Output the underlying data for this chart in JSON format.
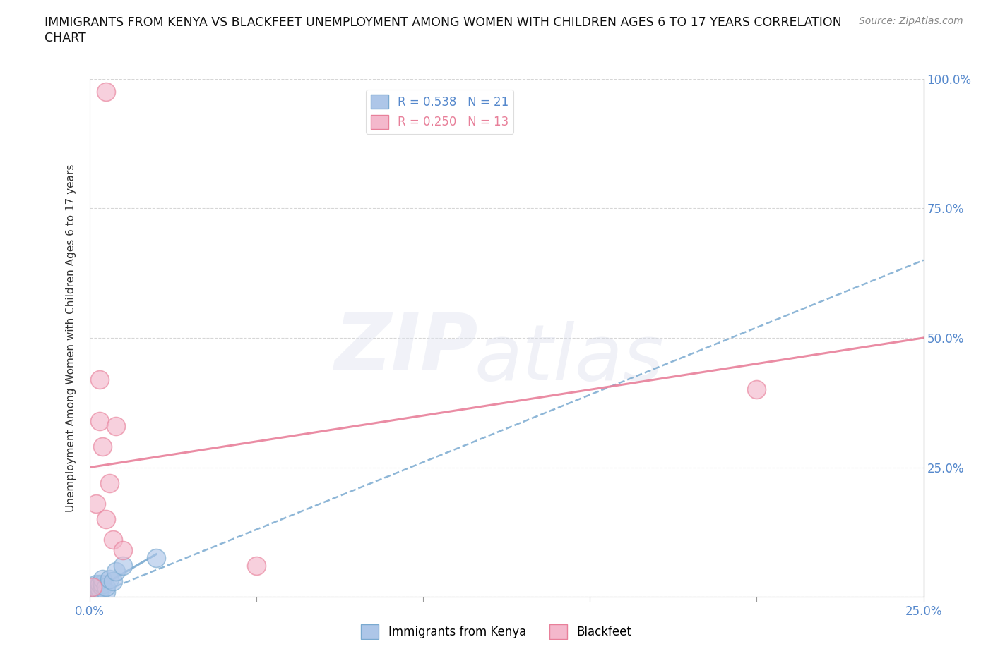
{
  "title": "IMMIGRANTS FROM KENYA VS BLACKFEET UNEMPLOYMENT AMONG WOMEN WITH CHILDREN AGES 6 TO 17 YEARS CORRELATION\nCHART",
  "source": "Source: ZipAtlas.com",
  "ylabel": "Unemployment Among Women with Children Ages 6 to 17 years",
  "xlim": [
    0,
    0.25
  ],
  "ylim": [
    0,
    1.0
  ],
  "xtick_labels": [
    "0.0%",
    "",
    "",
    "",
    "",
    "25.0%"
  ],
  "ytick_labels": [
    "",
    "25.0%",
    "50.0%",
    "75.0%",
    "100.0%"
  ],
  "blue_fill": "#adc6e8",
  "blue_edge": "#7aaad0",
  "pink_fill": "#f4b8cc",
  "pink_edge": "#e8809a",
  "blue_line_color": "#7aaad0",
  "pink_line_color": "#e8809a",
  "r_blue": 0.538,
  "n_blue": 21,
  "r_pink": 0.25,
  "n_pink": 13,
  "kenya_x": [
    0.001,
    0.001,
    0.001,
    0.001,
    0.002,
    0.002,
    0.002,
    0.002,
    0.003,
    0.003,
    0.003,
    0.004,
    0.004,
    0.004,
    0.005,
    0.005,
    0.006,
    0.007,
    0.008,
    0.01,
    0.02
  ],
  "kenya_y": [
    0.005,
    0.01,
    0.015,
    0.02,
    0.005,
    0.01,
    0.02,
    0.025,
    0.005,
    0.015,
    0.025,
    0.02,
    0.025,
    0.035,
    0.01,
    0.02,
    0.035,
    0.03,
    0.05,
    0.06,
    0.075
  ],
  "blackfeet_x": [
    0.001,
    0.002,
    0.003,
    0.003,
    0.004,
    0.005,
    0.006,
    0.007,
    0.008,
    0.01,
    0.05,
    0.2,
    0.005
  ],
  "blackfeet_y": [
    0.02,
    0.18,
    0.34,
    0.42,
    0.29,
    0.15,
    0.22,
    0.11,
    0.33,
    0.09,
    0.06,
    0.4,
    0.975
  ],
  "blue_trend_x": [
    0.0,
    0.25
  ],
  "blue_trend_y": [
    0.0,
    0.65
  ],
  "pink_trend_x": [
    0.0,
    0.25
  ],
  "pink_trend_y": [
    0.25,
    0.5
  ],
  "legend_label_blue": "Immigrants from Kenya",
  "legend_label_pink": "Blackfeet",
  "grid_color": "#cccccc",
  "tick_label_color": "#5588cc"
}
